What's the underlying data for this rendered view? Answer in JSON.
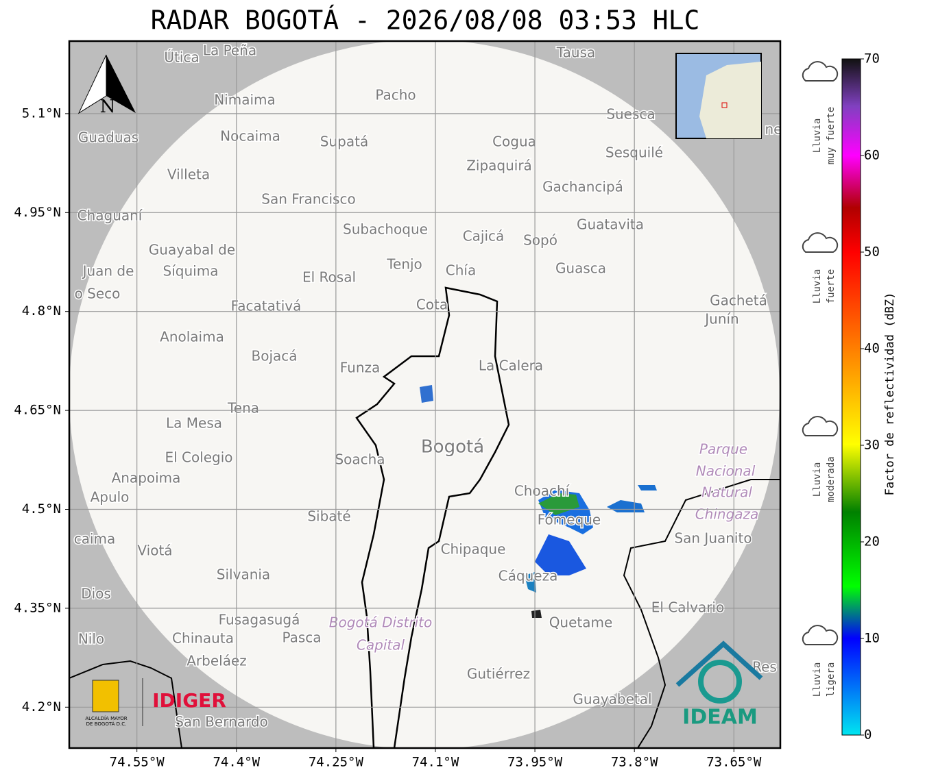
{
  "title": "RADAR BOGOTÁ - 2026/08/08 03:53 HLC",
  "map": {
    "xlim": [
      -74.652,
      -73.58
    ],
    "ylim": [
      4.138,
      5.21
    ],
    "xticks": [
      {
        "value": -74.55,
        "label": "74.55°W"
      },
      {
        "value": -74.4,
        "label": "74.4°W"
      },
      {
        "value": -74.25,
        "label": "74.25°W"
      },
      {
        "value": -74.1,
        "label": "74.1°W"
      },
      {
        "value": -73.95,
        "label": "73.95°W"
      },
      {
        "value": -73.8,
        "label": "73.8°W"
      },
      {
        "value": -73.65,
        "label": "73.65°W"
      }
    ],
    "yticks": [
      {
        "value": 5.1,
        "label": "5.1°N"
      },
      {
        "value": 4.95,
        "label": "4.95°N"
      },
      {
        "value": 4.8,
        "label": "4.8°N"
      },
      {
        "value": 4.65,
        "label": "4.65°N"
      },
      {
        "value": 4.5,
        "label": "4.5°N"
      },
      {
        "value": 4.35,
        "label": "4.35°N"
      },
      {
        "value": 4.2,
        "label": "4.2°N"
      }
    ],
    "grid": true,
    "north_label": "N",
    "places": [
      "Útica",
      "La Peña",
      "Tausa",
      "Pacho",
      "Nimaima",
      "Guaduas",
      "Nocaima",
      "Supatá",
      "Cogua",
      "Suesca",
      "Sesquilé",
      "Zipaquirá",
      "Villeta",
      "Gachancipá",
      "San Francisco",
      "Chaguaní",
      "Guatavita",
      "Subachoque",
      "Cajicá",
      "Sopó",
      "Guayabal de",
      "Síquima",
      "Juan de",
      "o Seco",
      "Tenjo",
      "Chía",
      "Guasca",
      "El Rosal",
      "Facatativá",
      "Cota",
      "Gachetá",
      "Junín",
      "Anolaima",
      "Bojacá",
      "Funza",
      "La Calera",
      "Tena",
      "La Mesa",
      "Bogotá",
      "Parque",
      "Nacional",
      "Natural",
      "Chingaza",
      "El Colegio",
      "Soacha",
      "Anapoima",
      "Apulo",
      "Choachí",
      "Fómeque",
      "Sibaté",
      "San Juanito",
      "caima",
      "Viotá",
      "Chipaque",
      "Cáqueza",
      "Silvania",
      "Dios",
      "El Calvario",
      "Fusagasugá",
      "Quetame",
      "Bogotá Distrito",
      "Capital",
      "Chinauta",
      "Pasca",
      "Nilo",
      "Arbeláez",
      "Gutiérrez",
      "Guayabetal",
      "San Bernardo",
      "Res",
      "ne"
    ]
  },
  "logos": {
    "alcaldia": [
      "ALCALDÍA MAYOR",
      "DE BOGOTÁ D.C."
    ],
    "idiger": "IDIGER",
    "ideam": "IDEAM"
  },
  "colorbar": {
    "label": "Factor de reflectividad (dBZ)",
    "lim": [
      0,
      70
    ],
    "ticks": [
      0,
      10,
      20,
      30,
      40,
      50,
      60,
      70
    ],
    "categories": [
      [
        "Lluvia",
        "muy fuerte"
      ],
      [
        "Lluvia",
        "fuerte"
      ],
      [
        "Lluvia",
        "moderada"
      ],
      [
        "Lluvia",
        "ligera"
      ]
    ]
  }
}
